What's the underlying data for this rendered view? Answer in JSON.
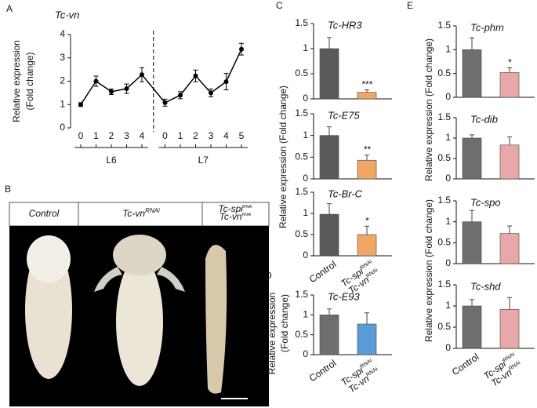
{
  "figure": {
    "panel_labels": [
      "A",
      "B",
      "C",
      "D",
      "E"
    ],
    "photo_labels": [
      "Control",
      [
        "Tc-vn",
        "RNAi"
      ],
      [
        "Tc-spi",
        "RNAi",
        "Tc-vn",
        "RNAi"
      ]
    ],
    "c_ylabel": "Relative expression  (Fold change)",
    "d_ylabel": [
      "Relative expression",
      "(Fold change)"
    ],
    "e_ylabels": [
      "Relative expression  (Fold change)",
      "Relative expression  (Fold change)"
    ]
  },
  "chart_data": [
    {
      "type": "line",
      "title": "Tc-vn",
      "ylabel": [
        "Relative expression",
        "(Fold change)"
      ],
      "categories": [
        "0",
        "1",
        "2",
        "3",
        "4",
        "0",
        "1",
        "2",
        "3",
        "4",
        "5"
      ],
      "groups": [
        "L6",
        "L7"
      ],
      "group_sizes": [
        5,
        6
      ],
      "values": [
        1.0,
        2.0,
        1.55,
        1.68,
        2.28,
        1.08,
        1.4,
        2.23,
        1.5,
        1.98,
        3.37
      ],
      "errors": [
        0.08,
        0.22,
        0.12,
        0.2,
        0.3,
        0.15,
        0.15,
        0.25,
        0.17,
        0.35,
        0.25
      ],
      "color": "#000000",
      "ylim": [
        0,
        4
      ],
      "yticks": [
        0,
        1,
        2,
        3,
        4
      ]
    },
    {
      "type": "bar",
      "title": "Tc-HR3",
      "categories": [
        null,
        null
      ],
      "values": [
        1.0,
        0.13
      ],
      "errors": [
        0.22,
        0.05
      ],
      "annotations": [
        null,
        "***"
      ],
      "colors": [
        "#5a5a5a",
        "#f0a766"
      ],
      "ylim": [
        0,
        1.5
      ],
      "yticks": [
        0,
        0.5,
        1,
        1.5
      ]
    },
    {
      "type": "bar",
      "title": "Tc-E75",
      "categories": [
        null,
        null
      ],
      "values": [
        1.0,
        0.43
      ],
      "errors": [
        0.2,
        0.12
      ],
      "annotations": [
        null,
        "**"
      ],
      "colors": [
        "#5a5a5a",
        "#f0a766"
      ],
      "ylim": [
        0,
        1.5
      ],
      "yticks": [
        0,
        0.5,
        1,
        1.5
      ]
    },
    {
      "type": "bar",
      "title": "Tc-Br-C",
      "categories": [
        "Control",
        [
          "Tc-spi",
          "RNAi",
          "Tc-vn",
          "RNAi"
        ]
      ],
      "values": [
        0.98,
        0.5
      ],
      "errors": [
        0.25,
        0.2
      ],
      "annotations": [
        null,
        "*"
      ],
      "colors": [
        "#5a5a5a",
        "#f0a766"
      ],
      "ylim": [
        0,
        1.5
      ],
      "yticks": [
        0,
        0.5,
        1,
        1.5
      ]
    },
    {
      "type": "bar",
      "title": "Tc-E93",
      "categories": [
        "Control",
        [
          "Tc-spi",
          "RNAi",
          "Tc-vn",
          "RNAi"
        ]
      ],
      "values": [
        1.0,
        0.77
      ],
      "errors": [
        0.15,
        0.28
      ],
      "annotations": [
        null,
        null
      ],
      "colors": [
        "#6e6e6e",
        "#5b9bd5"
      ],
      "ylim": [
        0,
        1.5
      ],
      "yticks": [
        0,
        0.5,
        1,
        1.5
      ]
    },
    {
      "type": "bar",
      "title": "Tc-phm",
      "categories": [
        null,
        null
      ],
      "values": [
        1.0,
        0.52
      ],
      "errors": [
        0.25,
        0.1
      ],
      "annotations": [
        null,
        "*"
      ],
      "colors": [
        "#6e6e6e",
        "#e8a8a8"
      ],
      "ylim": [
        0,
        1.5
      ],
      "yticks": [
        0,
        0.5,
        1,
        1.5
      ]
    },
    {
      "type": "bar",
      "title": "Tc-dib",
      "categories": [
        null,
        null
      ],
      "values": [
        1.0,
        0.83
      ],
      "errors": [
        0.08,
        0.2
      ],
      "annotations": [
        null,
        null
      ],
      "colors": [
        "#6e6e6e",
        "#e8a8a8"
      ],
      "ylim": [
        0,
        1.5
      ],
      "yticks": [
        0,
        0.5,
        1,
        1.5
      ]
    },
    {
      "type": "bar",
      "title": "Tc-spo",
      "categories": [
        null,
        null
      ],
      "values": [
        1.0,
        0.72
      ],
      "errors": [
        0.27,
        0.18
      ],
      "annotations": [
        null,
        null
      ],
      "colors": [
        "#6e6e6e",
        "#e8a8a8"
      ],
      "ylim": [
        0,
        1.5
      ],
      "yticks": [
        0,
        0.5,
        1,
        1.5
      ]
    },
    {
      "type": "bar",
      "title": "Tc-shd",
      "categories": [
        "Control",
        [
          "Tc-spi",
          "RNAi",
          "Tc-vn",
          "RNAi"
        ]
      ],
      "values": [
        1.0,
        0.92
      ],
      "errors": [
        0.15,
        0.28
      ],
      "annotations": [
        null,
        null
      ],
      "colors": [
        "#6e6e6e",
        "#e8a8a8"
      ],
      "ylim": [
        0,
        1.5
      ],
      "yticks": [
        0,
        0.5,
        1,
        1.5
      ]
    }
  ]
}
